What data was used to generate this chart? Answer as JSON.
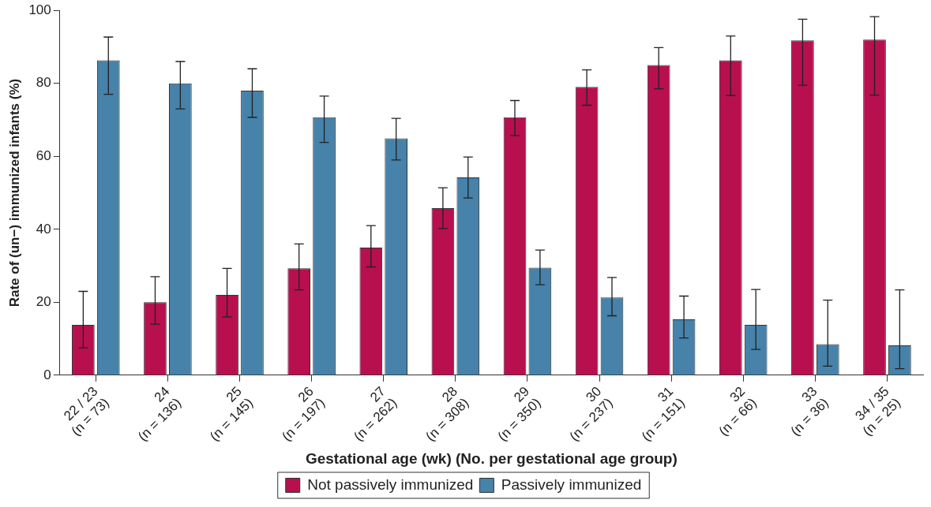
{
  "chart_data": {
    "type": "bar",
    "xlabel": "Gestational age (wk) (No. per gestational age group)",
    "ylabel": "Rate of (un−) immunized infants (%)",
    "categories": [
      "22 / 23\n(n = 73)",
      "24\n(n = 136)",
      "25\n(n = 145)",
      "26\n(n = 197)",
      "27\n(n = 262)",
      "28\n(n = 308)",
      "29\n(n = 350)",
      "30\n(n = 237)",
      "31\n(n = 151)",
      "32\n(n = 66)",
      "33\n(n = 36)",
      "34 / 35\n(n = 25)"
    ],
    "series": [
      {
        "name": "Not passively immunized",
        "color": "#b80f4f",
        "values": [
          13.8,
          20,
          22,
          29.3,
          35,
          45.8,
          70.7,
          79,
          85,
          86.3,
          91.8,
          92
        ],
        "errors": [
          [
            7.5,
            23
          ],
          [
            14,
            27
          ],
          [
            16,
            29.3
          ],
          [
            23.4,
            36
          ],
          [
            29.7,
            41
          ],
          [
            40.2,
            51.4
          ],
          [
            65.7,
            75.3
          ],
          [
            74,
            83.7
          ],
          [
            78.5,
            89.8
          ],
          [
            76.7,
            93
          ],
          [
            79.5,
            97.6
          ],
          [
            76.8,
            98.3
          ]
        ]
      },
      {
        "name": "Passively immunized",
        "color": "#4682aa",
        "values": [
          86.3,
          80,
          78,
          70.7,
          64.9,
          54.2,
          29.5,
          21.3,
          15.3,
          13.8,
          8.5,
          8.2
        ],
        "errors": [
          [
            77,
            92.7
          ],
          [
            73,
            86
          ],
          [
            70.7,
            84
          ],
          [
            63.8,
            76.5
          ],
          [
            59,
            70.4
          ],
          [
            48.6,
            59.8
          ],
          [
            24.8,
            34.3
          ],
          [
            16.3,
            26.8
          ],
          [
            10.2,
            21.7
          ],
          [
            7.1,
            23.5
          ],
          [
            2.5,
            20.6
          ],
          [
            1.8,
            23.4
          ]
        ]
      }
    ],
    "ylim": [
      0,
      100
    ],
    "yticks": [
      0,
      20,
      40,
      60,
      80,
      100
    ],
    "grid": false,
    "legend": "bottom"
  }
}
